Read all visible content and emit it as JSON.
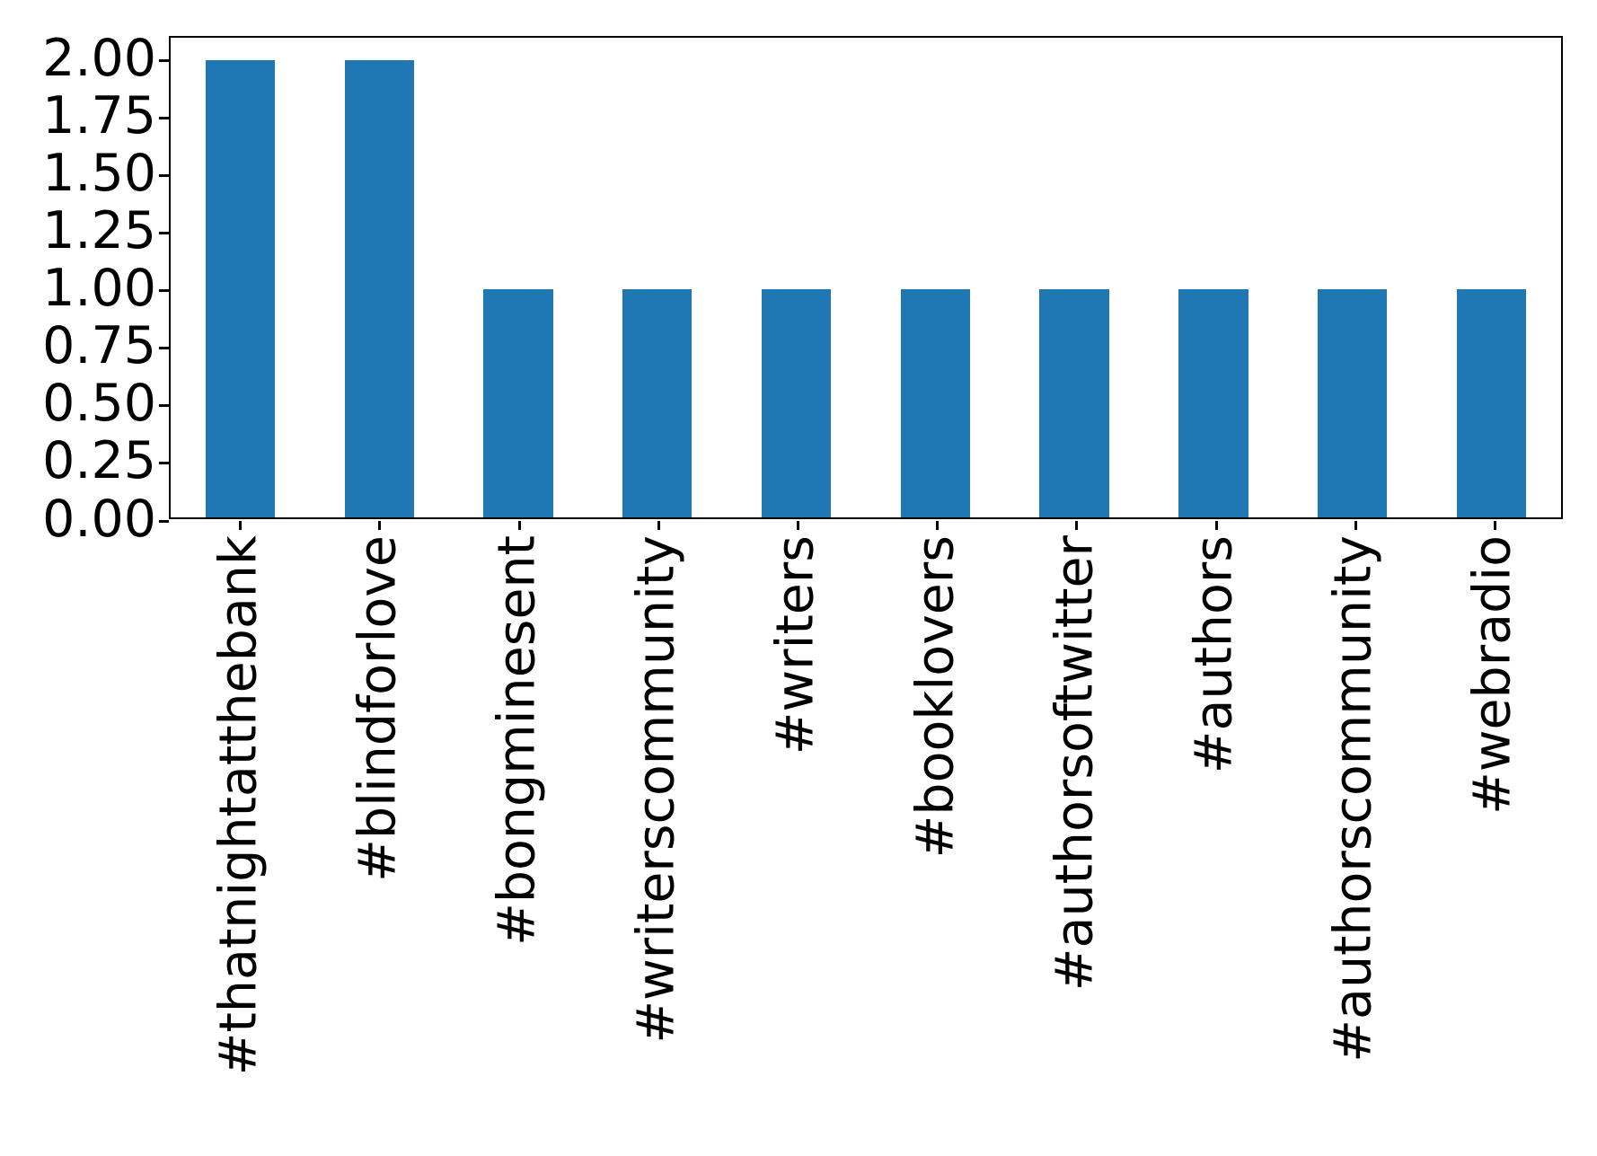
{
  "chart_data": {
    "type": "bar",
    "categories": [
      "#thatnightatthebank",
      "#blindforlove",
      "#bongminesent",
      "#writerscommunity",
      "#writers",
      "#booklovers",
      "#authorsoftwitter",
      "#authors",
      "#authorscommunity",
      "#webradio"
    ],
    "values": [
      2,
      2,
      1,
      1,
      1,
      1,
      1,
      1,
      1,
      1
    ],
    "title": "",
    "xlabel": "",
    "ylabel": "",
    "ylim": [
      0,
      2.1
    ],
    "yticks": [
      0,
      0.25,
      0.5,
      0.75,
      1,
      1.25,
      1.5,
      1.75,
      2
    ],
    "ytick_labels": [
      "0.00",
      "0.25",
      "0.50",
      "0.75",
      "1.00",
      "1.25",
      "1.50",
      "1.75",
      "2.00"
    ],
    "xtick_rotation_degrees": 90,
    "bar_width_fraction": 0.5,
    "bar_color": "#1f77b4",
    "axis_color": "#000000",
    "background_color": "#ffffff",
    "grid": false,
    "legend_position": "none"
  }
}
